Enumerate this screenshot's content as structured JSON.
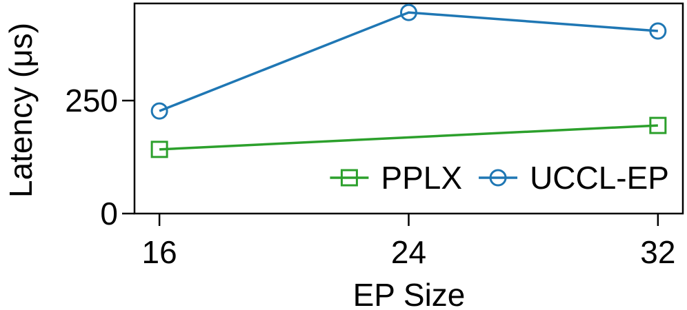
{
  "chart_data": {
    "type": "line",
    "xlabel": "EP Size",
    "ylabel": "Latency (μs)",
    "xlim": [
      15.2,
      32.8
    ],
    "xticks": [
      16,
      24,
      32
    ],
    "ylim": [
      0,
      465
    ],
    "yticks": [
      0,
      250
    ],
    "legend": "lower right",
    "series": [
      {
        "name": "PPLX",
        "color": "#2ca02c",
        "marker": "square",
        "x": [
          16,
          32
        ],
        "values": [
          142,
          195
        ]
      },
      {
        "name": "UCCL-EP",
        "color": "#1f77b4",
        "marker": "circle",
        "x": [
          16,
          24,
          32
        ],
        "values": [
          227,
          445,
          404
        ]
      }
    ]
  }
}
